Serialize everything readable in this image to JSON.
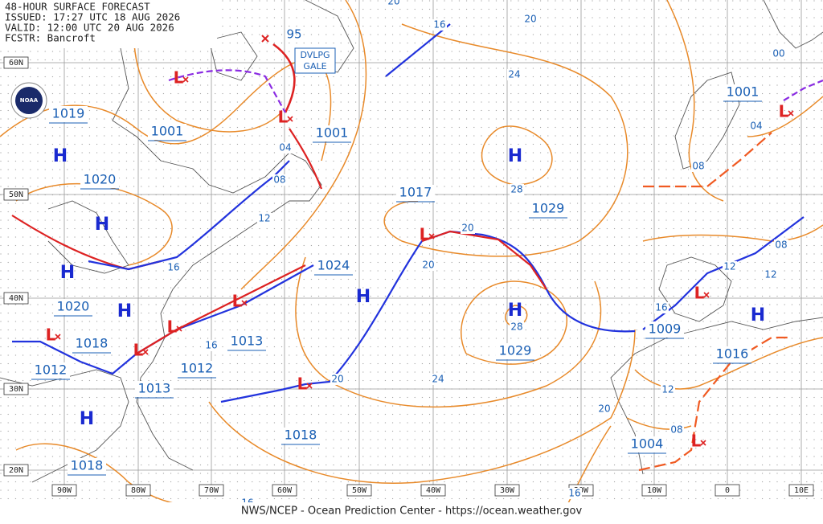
{
  "header": {
    "lines": [
      "48-HOUR SURFACE FORECAST",
      "ISSUED: 17:27 UTC 18 AUG 2026",
      "VALID:  12:00 UTC 20 AUG 2026",
      "FCSTR:  Bancroft"
    ]
  },
  "logo": "NOAA",
  "lat_labels": [
    "60N",
    "50N",
    "40N",
    "30N",
    "20N"
  ],
  "lon_labels": [
    "90W",
    "80W",
    "70W",
    "60W",
    "50W",
    "40W",
    "30W",
    "20W",
    "10W",
    "0",
    "10E"
  ],
  "high_symbol": "H",
  "low_symbol": "L",
  "pressure_labels": [
    1019,
    1001,
    1001,
    1020,
    1017,
    1029,
    1024,
    1020,
    1018,
    1013,
    1012,
    1012,
    1013,
    1018,
    1018,
    1029,
    1001,
    1009,
    1016,
    1004
  ],
  "isobar_labels": [
    "20",
    "16",
    "20",
    "24",
    "04",
    "08",
    "12",
    "16",
    "28",
    "20",
    "20",
    "28",
    "16",
    "20",
    "24",
    "00",
    "04",
    "08",
    "08",
    "12",
    "12",
    "16",
    "12",
    "08",
    "20",
    "16",
    "16"
  ],
  "annotations": {
    "gale": [
      "DVLPG",
      "GALE"
    ],
    "speed": "95"
  },
  "footer": "NWS/NCEP - Ocean Prediction Center - https://ocean.weather.gov"
}
